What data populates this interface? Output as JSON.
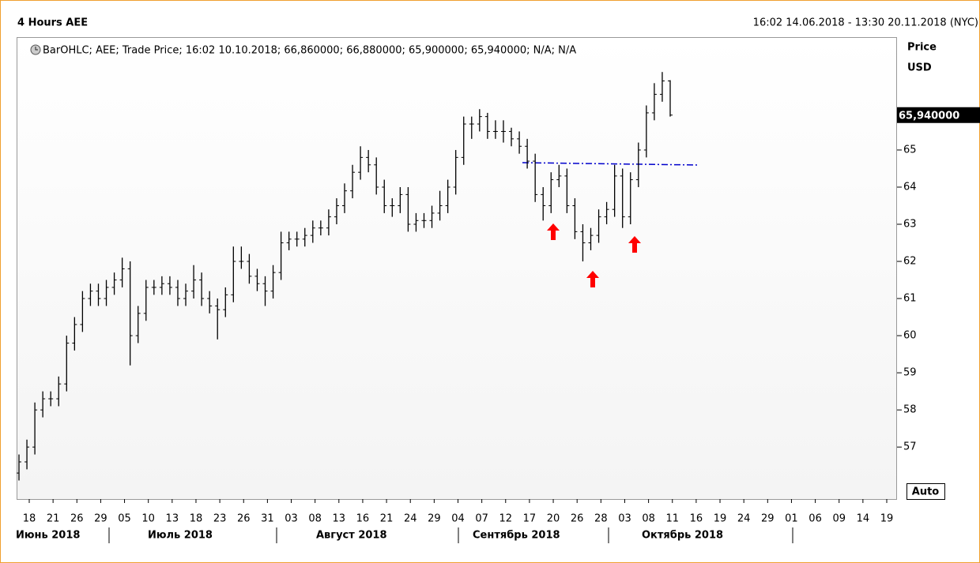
{
  "chart_data": {
    "type": "ohlc",
    "title": "4 Hours AEE",
    "date_range": "16:02 14.06.2018 - 13:30 20.11.2018 (NYC)",
    "legend": "BarOHLC; AEE; Trade Price; 16:02 10.10.2018; 66,860000; 66,880000; 65,900000; 65,940000; N/A; N/A",
    "axis_title": "Price",
    "axis_unit": "USD",
    "last_price_label": "65,940000",
    "scale_mode": "Auto",
    "color": "#000000",
    "ylim": [
      55.6,
      68.04
    ],
    "yticks": [
      57,
      58,
      59,
      60,
      61,
      62,
      63,
      64,
      65
    ],
    "x_labels": [
      "18",
      "21",
      "26",
      "29",
      "05",
      "10",
      "13",
      "18",
      "23",
      "26",
      "31",
      "03",
      "08",
      "13",
      "16",
      "21",
      "24",
      "29",
      "04",
      "07",
      "12",
      "17",
      "20",
      "26",
      "28",
      "03",
      "08",
      "11",
      "16",
      "19",
      "24",
      "29",
      "01",
      "06",
      "09",
      "14",
      "19"
    ],
    "months": [
      "Июнь 2018",
      "Июль 2018",
      "Август 2018",
      "Сентябрь 2018",
      "Октябрь 2018"
    ],
    "ohlc": [
      [
        56.3,
        56.8,
        56.1,
        56.6
      ],
      [
        56.6,
        57.2,
        56.4,
        57.0
      ],
      [
        57.0,
        58.2,
        56.8,
        58.0
      ],
      [
        58.0,
        58.5,
        57.8,
        58.3
      ],
      [
        58.3,
        58.5,
        58.1,
        58.3
      ],
      [
        58.3,
        58.9,
        58.1,
        58.7
      ],
      [
        58.7,
        60.0,
        58.5,
        59.8
      ],
      [
        59.8,
        60.5,
        59.6,
        60.3
      ],
      [
        60.3,
        61.2,
        60.1,
        61.0
      ],
      [
        61.0,
        61.4,
        60.8,
        61.2
      ],
      [
        61.2,
        61.4,
        60.8,
        61.0
      ],
      [
        61.0,
        61.5,
        60.8,
        61.3
      ],
      [
        61.3,
        61.7,
        61.1,
        61.5
      ],
      [
        61.5,
        62.1,
        61.3,
        61.8
      ],
      [
        61.8,
        62.0,
        59.2,
        60.0
      ],
      [
        60.0,
        60.8,
        59.8,
        60.6
      ],
      [
        60.6,
        61.5,
        60.4,
        61.3
      ],
      [
        61.3,
        61.5,
        61.1,
        61.3
      ],
      [
        61.3,
        61.6,
        61.1,
        61.4
      ],
      [
        61.4,
        61.6,
        61.1,
        61.3
      ],
      [
        61.3,
        61.5,
        60.8,
        61.0
      ],
      [
        61.0,
        61.4,
        60.8,
        61.2
      ],
      [
        61.2,
        61.9,
        61.0,
        61.5
      ],
      [
        61.5,
        61.7,
        60.8,
        61.0
      ],
      [
        61.0,
        61.2,
        60.6,
        60.8
      ],
      [
        60.8,
        61.0,
        59.9,
        60.7
      ],
      [
        60.7,
        61.3,
        60.5,
        61.1
      ],
      [
        61.1,
        62.4,
        60.9,
        62.0
      ],
      [
        62.0,
        62.4,
        61.8,
        62.0
      ],
      [
        62.0,
        62.2,
        61.4,
        61.6
      ],
      [
        61.6,
        61.8,
        61.2,
        61.4
      ],
      [
        61.4,
        61.6,
        60.8,
        61.2
      ],
      [
        61.2,
        61.9,
        61.0,
        61.7
      ],
      [
        61.7,
        62.8,
        61.5,
        62.5
      ],
      [
        62.5,
        62.8,
        62.3,
        62.6
      ],
      [
        62.6,
        62.8,
        62.4,
        62.6
      ],
      [
        62.6,
        62.9,
        62.4,
        62.7
      ],
      [
        62.7,
        63.1,
        62.5,
        62.9
      ],
      [
        62.9,
        63.1,
        62.7,
        62.9
      ],
      [
        62.9,
        63.4,
        62.7,
        63.2
      ],
      [
        63.2,
        63.7,
        63.0,
        63.5
      ],
      [
        63.5,
        64.1,
        63.3,
        63.9
      ],
      [
        63.9,
        64.6,
        63.7,
        64.4
      ],
      [
        64.4,
        65.1,
        64.2,
        64.8
      ],
      [
        64.8,
        65.0,
        64.4,
        64.6
      ],
      [
        64.6,
        64.8,
        63.8,
        64.0
      ],
      [
        64.0,
        64.2,
        63.3,
        63.5
      ],
      [
        63.5,
        63.7,
        63.2,
        63.5
      ],
      [
        63.5,
        64.0,
        63.3,
        63.8
      ],
      [
        63.8,
        64.0,
        62.8,
        63.0
      ],
      [
        63.0,
        63.3,
        62.8,
        63.1
      ],
      [
        63.1,
        63.3,
        62.9,
        63.1
      ],
      [
        63.1,
        63.5,
        62.9,
        63.3
      ],
      [
        63.3,
        63.9,
        63.1,
        63.5
      ],
      [
        63.5,
        64.2,
        63.3,
        64.0
      ],
      [
        64.0,
        65.0,
        63.8,
        64.8
      ],
      [
        64.8,
        65.9,
        64.6,
        65.7
      ],
      [
        65.7,
        65.9,
        65.3,
        65.7
      ],
      [
        65.7,
        66.1,
        65.5,
        65.9
      ],
      [
        65.9,
        66.0,
        65.3,
        65.5
      ],
      [
        65.5,
        65.8,
        65.3,
        65.5
      ],
      [
        65.5,
        65.8,
        65.2,
        65.5
      ],
      [
        65.5,
        65.6,
        65.1,
        65.3
      ],
      [
        65.3,
        65.5,
        64.9,
        65.1
      ],
      [
        65.1,
        65.3,
        64.5,
        64.7
      ],
      [
        64.7,
        64.9,
        63.6,
        63.8
      ],
      [
        63.8,
        64.0,
        63.1,
        63.5
      ],
      [
        63.5,
        64.4,
        63.3,
        64.2
      ],
      [
        64.2,
        64.6,
        64.0,
        64.3
      ],
      [
        64.3,
        64.5,
        63.3,
        63.5
      ],
      [
        63.5,
        63.7,
        62.6,
        62.8
      ],
      [
        62.8,
        63.0,
        62.0,
        62.5
      ],
      [
        62.5,
        62.9,
        62.3,
        62.7
      ],
      [
        62.7,
        63.4,
        62.5,
        63.2
      ],
      [
        63.2,
        63.6,
        63.0,
        63.4
      ],
      [
        63.4,
        64.6,
        63.2,
        64.3
      ],
      [
        64.3,
        64.5,
        62.9,
        63.2
      ],
      [
        63.2,
        64.4,
        63.0,
        64.2
      ],
      [
        64.2,
        65.2,
        64.0,
        65.0
      ],
      [
        65.0,
        66.2,
        64.8,
        66.0
      ],
      [
        66.0,
        66.8,
        65.8,
        66.5
      ],
      [
        66.5,
        67.1,
        66.3,
        66.86
      ],
      [
        66.86,
        66.88,
        65.9,
        65.94
      ]
    ]
  }
}
